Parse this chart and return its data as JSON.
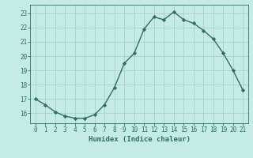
{
  "x": [
    0,
    1,
    2,
    3,
    4,
    5,
    6,
    7,
    8,
    9,
    10,
    11,
    12,
    13,
    14,
    15,
    16,
    17,
    18,
    19,
    20,
    21
  ],
  "y": [
    17.0,
    16.6,
    16.1,
    15.8,
    15.65,
    15.65,
    15.9,
    16.6,
    17.8,
    19.5,
    20.2,
    21.9,
    22.75,
    22.55,
    23.1,
    22.55,
    22.3,
    21.8,
    21.2,
    20.2,
    19.0,
    17.6
  ],
  "xlabel": "Humidex (Indice chaleur)",
  "ylabel": "",
  "line_color": "#2e6e62",
  "marker": "D",
  "marker_size": 2.2,
  "bg_color": "#c5ebe6",
  "grid_color": "#aad4ce",
  "tick_color": "#2e6e62",
  "ylim": [
    15.3,
    23.6
  ],
  "xlim": [
    -0.5,
    21.5
  ],
  "yticks": [
    16,
    17,
    18,
    19,
    20,
    21,
    22,
    23
  ],
  "xticks": [
    0,
    1,
    2,
    3,
    4,
    5,
    6,
    7,
    8,
    9,
    10,
    11,
    12,
    13,
    14,
    15,
    16,
    17,
    18,
    19,
    20,
    21
  ]
}
